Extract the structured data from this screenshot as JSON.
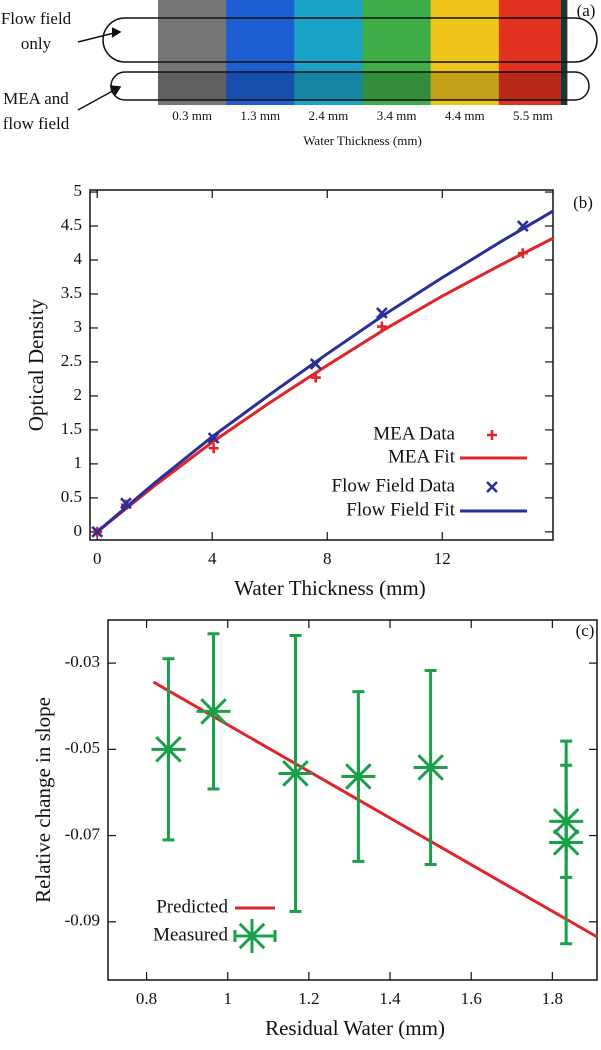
{
  "chart_data": [
    {
      "type": "strip",
      "panel_label": "(a)",
      "side_labels": [
        [
          "Flow field",
          "only"
        ],
        [
          "MEA and",
          "flow field"
        ]
      ],
      "categories": [
        "0.3 mm",
        "1.3 mm",
        "2.4 mm",
        "3.4 mm",
        "4.4 mm",
        "5.5 mm"
      ],
      "colors": [
        "#767676",
        "#1d5fd3",
        "#19a3c6",
        "#3fae48",
        "#efc51c",
        "#e2311f"
      ],
      "xlabel": "Water Thickness (mm)"
    },
    {
      "type": "line",
      "panel_label": "(b)",
      "xlabel": "Water Thickness (mm)",
      "ylabel": "Optical Density",
      "xlim": [
        -0.25,
        15.85
      ],
      "xticks": [
        0,
        4,
        8,
        12
      ],
      "ylim": [
        -0.12,
        5.03
      ],
      "yticks": [
        0,
        0.5,
        1,
        1.5,
        2,
        2.5,
        3,
        3.5,
        4,
        4.5,
        5
      ],
      "series": [
        {
          "name": "MEA Data",
          "color": "#e0242a",
          "marker": "plus",
          "x": [
            0,
            1,
            4.05,
            7.6,
            9.9,
            14.8
          ],
          "values": [
            0,
            0.4,
            1.23,
            2.27,
            3.02,
            4.1
          ]
        },
        {
          "name": "MEA Fit",
          "color": "#e0242a",
          "marker": "line",
          "x": [
            0,
            2,
            4,
            6,
            8,
            10,
            12,
            14,
            15.85
          ],
          "values": [
            0,
            0.68,
            1.32,
            1.9,
            2.45,
            2.98,
            3.47,
            3.92,
            4.32
          ]
        },
        {
          "name": "Flow Field Data",
          "color": "#2a2f9a",
          "marker": "x",
          "x": [
            0,
            1,
            4.05,
            7.6,
            9.9,
            14.8
          ],
          "values": [
            0,
            0.42,
            1.38,
            2.47,
            3.22,
            4.5
          ]
        },
        {
          "name": "Flow Field Fit",
          "color": "#2a2f9a",
          "marker": "line",
          "x": [
            0,
            2,
            4,
            6,
            8,
            10,
            12,
            14,
            15.85
          ],
          "values": [
            0,
            0.72,
            1.4,
            2.02,
            2.62,
            3.2,
            3.74,
            4.26,
            4.72
          ]
        }
      ]
    },
    {
      "type": "line",
      "panel_label": "(c)",
      "xlabel": "Residual Water (mm)",
      "ylabel": "Relative change in slope",
      "xlim": [
        0.705,
        1.91
      ],
      "xticks": [
        0.8,
        1,
        1.2,
        1.4,
        1.6,
        1.8
      ],
      "ylim": [
        -0.1035,
        -0.02
      ],
      "yticks": [
        -0.03,
        -0.05,
        -0.07,
        -0.09
      ],
      "series": [
        {
          "name": "Predicted",
          "color": "#e0242a",
          "marker": "line",
          "x": [
            0.817,
            1.91
          ],
          "values": [
            -0.0344,
            -0.0935
          ]
        },
        {
          "name": "Measured",
          "color": "#1aa04a",
          "marker": "asterisk",
          "x": [
            0.854,
            0.965,
            1.167,
            1.322,
            1.5,
            1.834,
            1.834
          ],
          "values": [
            -0.05,
            -0.0412,
            -0.0556,
            -0.0563,
            -0.0542,
            -0.0667,
            -0.0716
          ],
          "errors": [
            0.021,
            0.018,
            0.032,
            0.0197,
            0.0225,
            0.013,
            0.0235
          ]
        }
      ]
    }
  ]
}
